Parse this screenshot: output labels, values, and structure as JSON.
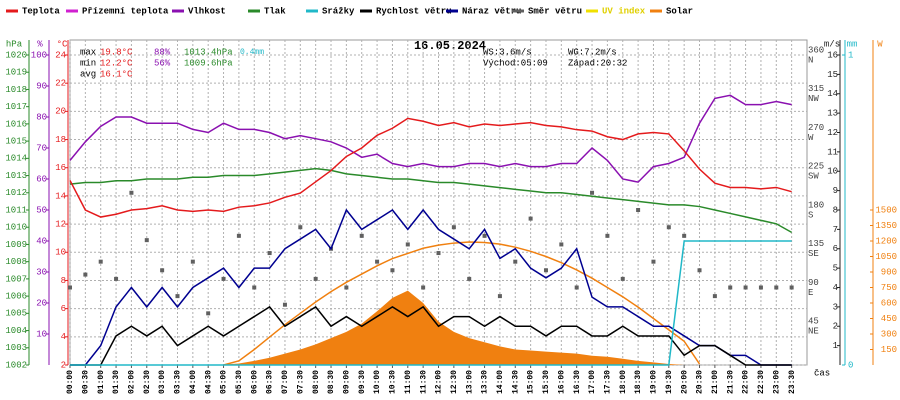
{
  "chart_data": {
    "type": "line",
    "title": "16.05.2024",
    "x_label": "čas",
    "legend": [
      {
        "name": "Teplota",
        "color": "#e41a1c"
      },
      {
        "name": "Přízemní teplota",
        "color": "#d020d0"
      },
      {
        "name": "Vlhkost",
        "color": "#8a10b0"
      },
      {
        "name": "Tlak",
        "color": "#2a8a2a"
      },
      {
        "name": "Srážky",
        "color": "#20b8c8"
      },
      {
        "name": "Rychlost větru",
        "color": "#000000"
      },
      {
        "name": "Náraz větru",
        "color": "#000090"
      },
      {
        "name": "Směr větru",
        "color": "#606060"
      },
      {
        "name": "UV index",
        "color": "#f0e000"
      },
      {
        "name": "Solar",
        "color": "#f08010"
      }
    ],
    "stats": {
      "max": [
        "max",
        "19.8°C",
        "88%",
        "1013.4hPa",
        "0.4mm"
      ],
      "min": [
        "min",
        "12.2°C",
        "56%",
        "1009.6hPa"
      ],
      "avg": [
        "avg",
        "16.1°C"
      ],
      "wind": [
        "WS:3.6m/s",
        "WG:7.2m/s"
      ],
      "sun": [
        "Východ:05:09",
        "Západ:20:32"
      ]
    },
    "categories": [
      "00:00",
      "00:30",
      "01:00",
      "01:30",
      "02:00",
      "02:30",
      "03:00",
      "03:30",
      "04:00",
      "04:30",
      "05:00",
      "05:30",
      "06:00",
      "06:30",
      "07:00",
      "07:30",
      "08:00",
      "08:30",
      "09:00",
      "09:30",
      "10:00",
      "10:30",
      "11:00",
      "11:30",
      "12:00",
      "12:30",
      "13:00",
      "13:30",
      "14:00",
      "14:30",
      "15:00",
      "15:30",
      "16:00",
      "16:30",
      "17:00",
      "17:30",
      "18:00",
      "18:30",
      "19:00",
      "19:30",
      "20:00",
      "20:30",
      "21:00",
      "21:30",
      "22:00",
      "22:30",
      "23:00",
      "23:30"
    ],
    "axes": {
      "pressure": {
        "label": "hPa",
        "color": "#2a8a2a",
        "lim": [
          1002,
          1020
        ],
        "ticks": [
          1002,
          1003,
          1004,
          1005,
          1006,
          1007,
          1008,
          1009,
          1010,
          1011,
          1012,
          1013,
          1014,
          1015,
          1016,
          1017,
          1018,
          1019,
          1020
        ]
      },
      "humidity": {
        "label": "%",
        "color": "#8a10b0",
        "lim": [
          0,
          100
        ],
        "ticks": [
          10,
          20,
          30,
          40,
          50,
          60,
          70,
          80,
          90,
          100
        ]
      },
      "temperature": {
        "label": "°C",
        "color": "#e41a1c",
        "lim": [
          2,
          24
        ],
        "ticks": [
          2,
          4,
          6,
          8,
          10,
          12,
          14,
          16,
          18,
          20,
          22,
          24
        ]
      },
      "direction": {
        "label": "",
        "color": "#404040",
        "lim": [
          0,
          360
        ],
        "ticks": [
          {
            "value": 45,
            "label": "45",
            "dir": "NE"
          },
          {
            "value": 90,
            "label": "90",
            "dir": "E"
          },
          {
            "value": 135,
            "label": "135",
            "dir": "SE"
          },
          {
            "value": 180,
            "label": "180",
            "dir": "S"
          },
          {
            "value": 225,
            "label": "225",
            "dir": "SW"
          },
          {
            "value": 270,
            "label": "270",
            "dir": "W"
          },
          {
            "value": 315,
            "label": "315",
            "dir": "NW"
          },
          {
            "value": 360,
            "label": "360",
            "dir": "N"
          }
        ]
      },
      "wind": {
        "label": "m/s",
        "color": "#202020",
        "lim": [
          0,
          16
        ],
        "ticks": [
          1,
          2,
          3,
          4,
          5,
          6,
          7,
          8,
          9,
          10,
          11,
          12,
          13,
          14,
          15,
          16
        ]
      },
      "rain": {
        "label": "mm",
        "color": "#20b8c8",
        "lim": [
          0,
          1
        ],
        "ticks": [
          0,
          1
        ]
      },
      "solar": {
        "label": "W",
        "color": "#f08010",
        "lim": [
          0,
          3000
        ],
        "ticks": [
          150,
          300,
          450,
          600,
          750,
          900,
          1050,
          1200,
          1350,
          1500
        ]
      }
    },
    "grid": true,
    "series": [
      {
        "kind": "area",
        "axis": "solar",
        "color": "#f08010",
        "values": [
          0,
          0,
          0,
          0,
          0,
          0,
          0,
          0,
          0,
          0,
          5,
          15,
          40,
          70,
          110,
          150,
          200,
          260,
          320,
          400,
          520,
          650,
          720,
          600,
          420,
          320,
          260,
          220,
          180,
          150,
          140,
          130,
          120,
          110,
          90,
          80,
          60,
          40,
          25,
          10,
          0,
          0,
          0,
          0,
          0,
          0,
          0,
          0
        ]
      },
      {
        "kind": "line",
        "axis": "solar",
        "color": "#f08010",
        "values": [
          null,
          null,
          null,
          null,
          null,
          null,
          null,
          null,
          null,
          null,
          0,
          40,
          150,
          270,
          390,
          500,
          610,
          710,
          800,
          880,
          960,
          1030,
          1080,
          1130,
          1160,
          1180,
          1190,
          1185,
          1170,
          1140,
          1100,
          1050,
          990,
          920,
          840,
          750,
          660,
          560,
          450,
          340,
          230,
          10,
          null,
          null,
          null,
          null,
          null,
          null
        ]
      },
      {
        "kind": "line",
        "axis": "pressure",
        "color": "#2a8a2a",
        "values": [
          1012.5,
          1012.6,
          1012.6,
          1012.7,
          1012.7,
          1012.8,
          1012.8,
          1012.8,
          1012.9,
          1012.9,
          1013.0,
          1013.0,
          1013.0,
          1013.1,
          1013.2,
          1013.3,
          1013.4,
          1013.3,
          1013.1,
          1013.0,
          1012.9,
          1012.8,
          1012.8,
          1012.7,
          1012.6,
          1012.6,
          1012.5,
          1012.4,
          1012.3,
          1012.2,
          1012.1,
          1012.0,
          1012.0,
          1011.9,
          1011.8,
          1011.7,
          1011.6,
          1011.5,
          1011.4,
          1011.3,
          1011.3,
          1011.2,
          1011.0,
          1010.8,
          1010.6,
          1010.4,
          1010.2,
          1009.7
        ]
      },
      {
        "kind": "line",
        "axis": "humidity",
        "color": "#8a10b0",
        "values": [
          66,
          72,
          77,
          80,
          80,
          78,
          78,
          78,
          76,
          75,
          78,
          76,
          76,
          75,
          73,
          74,
          73,
          72,
          70,
          67,
          68,
          65,
          64,
          65,
          64,
          64,
          65,
          65,
          64,
          65,
          64,
          64,
          65,
          65,
          70,
          66,
          60,
          59,
          64,
          65,
          67,
          78,
          86,
          87,
          84,
          84,
          85,
          84
        ]
      },
      {
        "kind": "line",
        "axis": "temperature",
        "color": "#e41a1c",
        "values": [
          15.1,
          13.0,
          12.5,
          12.7,
          13.0,
          13.1,
          13.3,
          13.0,
          12.9,
          13.0,
          12.9,
          13.2,
          13.3,
          13.5,
          13.9,
          14.2,
          15.0,
          15.8,
          16.8,
          17.4,
          18.3,
          18.8,
          19.5,
          19.3,
          19.0,
          19.2,
          18.9,
          19.1,
          19.0,
          19.1,
          19.2,
          19.0,
          18.9,
          18.7,
          18.6,
          18.2,
          18.0,
          18.4,
          18.5,
          18.4,
          17.2,
          15.9,
          14.9,
          14.6,
          14.6,
          14.5,
          14.6,
          14.3
        ]
      },
      {
        "kind": "points",
        "axis": "direction",
        "color": "#606060",
        "values": [
          90,
          105,
          120,
          100,
          200,
          145,
          110,
          80,
          120,
          60,
          100,
          150,
          90,
          130,
          70,
          160,
          100,
          135,
          90,
          150,
          120,
          110,
          140,
          90,
          130,
          160,
          100,
          150,
          80,
          120,
          170,
          110,
          140,
          90,
          200,
          150,
          100,
          180,
          120,
          160,
          150,
          110,
          80,
          90,
          90,
          90,
          90,
          90
        ]
      },
      {
        "kind": "line",
        "axis": "wind",
        "color": "#000090",
        "values": [
          0,
          0,
          1,
          3,
          4,
          3,
          4,
          3,
          4,
          4.5,
          5,
          4,
          5,
          5,
          6,
          6.5,
          7,
          6,
          8,
          7,
          7.5,
          8,
          7,
          8,
          7,
          6.5,
          6,
          7,
          5.5,
          6,
          5,
          4.5,
          5,
          6,
          3.5,
          3,
          3,
          2.5,
          2,
          2,
          1.5,
          1,
          1,
          0.5,
          0.5,
          0,
          0,
          0
        ]
      },
      {
        "kind": "line",
        "axis": "wind",
        "color": "#000000",
        "values": [
          0,
          0,
          0,
          1.5,
          2,
          1.5,
          2,
          1,
          1.5,
          2,
          1.5,
          2,
          2.5,
          3,
          2,
          2.5,
          3,
          2,
          2.5,
          2,
          2.5,
          3,
          2.5,
          3,
          2,
          2.5,
          2.5,
          2,
          2.5,
          2,
          2,
          1.5,
          2,
          2,
          1.5,
          1.5,
          2,
          1.5,
          1.5,
          1.5,
          0.5,
          1,
          1,
          0.5,
          0,
          0,
          0,
          0
        ]
      },
      {
        "kind": "line",
        "axis": "rain",
        "color": "#20b8c8",
        "values": [
          0,
          0,
          0,
          0,
          0,
          0,
          0,
          0,
          0,
          0,
          0,
          0,
          0,
          0,
          0,
          0,
          0,
          0,
          0,
          0,
          0,
          0,
          0,
          0,
          0,
          0,
          0,
          0,
          0,
          0,
          0,
          0,
          0,
          0,
          0,
          0,
          0,
          0,
          0,
          0,
          0.4,
          0.4,
          0.4,
          0.4,
          0.4,
          0.4,
          0.4,
          0.4
        ]
      }
    ]
  }
}
